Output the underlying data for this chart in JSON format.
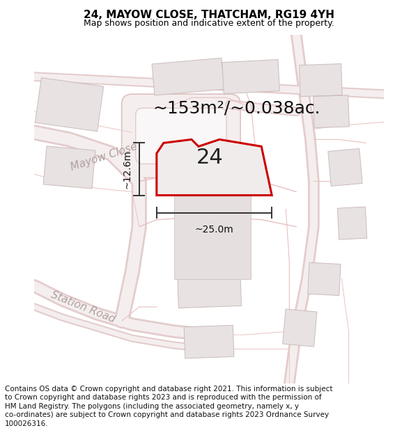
{
  "title": "24, MAYOW CLOSE, THATCHAM, RG19 4YH",
  "subtitle": "Map shows position and indicative extent of the property.",
  "footer_lines": [
    "Contains OS data © Crown copyright and database right 2021. This information is subject",
    "to Crown copyright and database rights 2023 and is reproduced with the permission of",
    "HM Land Registry. The polygons (including the associated geometry, namely x, y",
    "co-ordinates) are subject to Crown copyright and database rights 2023 Ordnance Survey",
    "100026316."
  ],
  "area_text": "~153m²/~0.038ac.",
  "label_number": "24",
  "dim_width": "~25.0m",
  "dim_height": "~12.6m",
  "map_bg": "#f9f7f7",
  "road_fill": "#f0eaea",
  "road_edge": "#e0c0c0",
  "road_line": "#e8c8c8",
  "building_fill": "#e8e2e2",
  "building_edge": "#ccbbbb",
  "highlight_color": "#cc0000",
  "highlight_fill": "#f5f0f0",
  "road_label_color": "#b0a0a0",
  "dim_color": "#333333",
  "title_fontsize": 11,
  "subtitle_fontsize": 9,
  "footer_fontsize": 7.5,
  "area_fontsize": 18,
  "number_fontsize": 22,
  "road_label_fontsize": 11
}
